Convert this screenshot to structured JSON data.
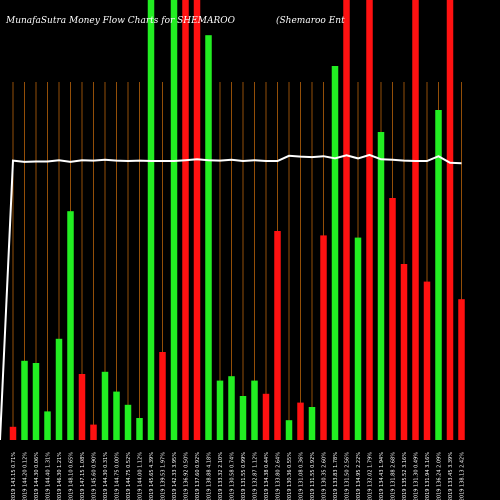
{
  "header": {
    "title": "MunafaSutra  Money Flow  Charts for SHEMAROO",
    "company": "(Shemaroo   Ent"
  },
  "colors": {
    "background": "#000000",
    "up": "#22ee22",
    "down": "#ff1111",
    "grid": "#b8620a",
    "line": "#ffffff"
  },
  "chart_data": {
    "type": "bar",
    "ylim": [
      0,
      100
    ],
    "bars": [
      {
        "label": "13 Fri 2019 143.15 0.71%",
        "value": 3,
        "dir": "down"
      },
      {
        "label": "12 Thu 2019 144.20 0.12%",
        "value": 18,
        "dir": "up"
      },
      {
        "label": "11 Wed 2019 144.30 0.06%",
        "value": 17.5,
        "dir": "up"
      },
      {
        "label": "10 Tue 2019 144.40 1.31%",
        "value": 6.5,
        "dir": "up"
      },
      {
        "label": "09 Mon 2019 146.30 1.21%",
        "value": 23,
        "dir": "up"
      },
      {
        "label": "06 Fri 2019 148.10 0.65%",
        "value": 52,
        "dir": "up"
      },
      {
        "label": "05 Thu 2019 147.15 1.08%",
        "value": 15,
        "dir": "down"
      },
      {
        "label": "04 Wed 2019 145.60 0.90%",
        "value": 3.5,
        "dir": "down"
      },
      {
        "label": "03 Tue 2019 144.30 0.31%",
        "value": 15.5,
        "dir": "up"
      },
      {
        "label": "02 Mon 2019 144.75 0.00%",
        "value": 11,
        "dir": "up"
      },
      {
        "label": "30 Fri 2019 144.75 0.52%",
        "value": 8,
        "dir": "up"
      },
      {
        "label": "29 Thu 2019 144.00 1.12%",
        "value": 5,
        "dir": "up"
      },
      {
        "label": "28 Wed 2019 145.65 4.39%",
        "value": 100,
        "dir": "up"
      },
      {
        "label": "27 Tue 2019 139.53 1.97%",
        "value": 20,
        "dir": "down"
      },
      {
        "label": "26 Mon 2019 142.33 3.95%",
        "value": 100,
        "dir": "up"
      },
      {
        "label": "23 Fri 2019 136.92 0.50%",
        "value": 100,
        "dir": "down"
      },
      {
        "label": "22 Thu 2019 137.60 0.92%",
        "value": 100,
        "dir": "down"
      },
      {
        "label": "21 Wed 2019 138.88 4.18%",
        "value": 92,
        "dir": "up"
      },
      {
        "label": "20 Tue 2019 133.32 2.10%",
        "value": 13.5,
        "dir": "up"
      },
      {
        "label": "19 Mon 2019 130.58 0.74%",
        "value": 14.5,
        "dir": "up"
      },
      {
        "label": "16 Fri 2019 131.55 0.99%",
        "value": 10,
        "dir": "up"
      },
      {
        "label": "15 Thu 2019 132.87 1.12%",
        "value": 13.5,
        "dir": "up"
      },
      {
        "label": "14 Wed 2019 134.38 0.44%",
        "value": 10.5,
        "dir": "down"
      },
      {
        "label": "13 Tue 2019 133.80 2.64%",
        "value": 47.5,
        "dir": "down"
      },
      {
        "label": "12 Mon 2019 130.36 0.55%",
        "value": 4.5,
        "dir": "up"
      },
      {
        "label": "09 Fri 2019 131.08 0.36%",
        "value": 8.5,
        "dir": "down"
      },
      {
        "label": "08 Thu 2019 131.55 0.92%",
        "value": 7.5,
        "dir": "up"
      },
      {
        "label": "07 Wed 2019 130.35 2.60%",
        "value": 46.5,
        "dir": "down"
      },
      {
        "label": "04 Tue 2019 133.83 1.78%",
        "value": 85,
        "dir": "up"
      },
      {
        "label": "03 Mon 2019 131.50 2.56%",
        "value": 100,
        "dir": "down"
      },
      {
        "label": "31 Fri 2019 134.95 2.22%",
        "value": 46,
        "dir": "up"
      },
      {
        "label": "30 Thu 2019 132.02 1.79%",
        "value": 100,
        "dir": "down"
      },
      {
        "label": "29 Wed 2019 134.43 1.94%",
        "value": 70,
        "dir": "up"
      },
      {
        "label": "28 Tue 2019 131.88 2.68%",
        "value": 55,
        "dir": "down"
      },
      {
        "label": "25 Mon 2019 135.52 3.16%",
        "value": 40,
        "dir": "down"
      },
      {
        "label": "24 Fri 2019 131.30 0.49%",
        "value": 100,
        "dir": "down"
      },
      {
        "label": "23 Thu 2019 131.94 3.16%",
        "value": 36,
        "dir": "down"
      },
      {
        "label": "22 Wed 2019 136.24 2.09%",
        "value": 75,
        "dir": "up"
      },
      {
        "label": "21 Tue 2019 133.45 3.39%",
        "value": 100,
        "dir": "down"
      },
      {
        "label": "20 Mon 2019 138.13 2.42%",
        "value": 32,
        "dir": "down"
      }
    ],
    "line": [
      63.5,
      63.2,
      63.3,
      63.3,
      63.6,
      63.2,
      63.6,
      63.5,
      63.7,
      63.5,
      63.4,
      63.5,
      63.4,
      63.4,
      63.4,
      63.6,
      63.8,
      63.6,
      63.5,
      63.7,
      63.4,
      63.6,
      63.4,
      63.4,
      64.6,
      64.4,
      64.3,
      64.5,
      64.0,
      64.7,
      64.0,
      64.8,
      63.8,
      63.7,
      63.5,
      63.4,
      63.4,
      64.5,
      63.0,
      62.9
    ]
  }
}
